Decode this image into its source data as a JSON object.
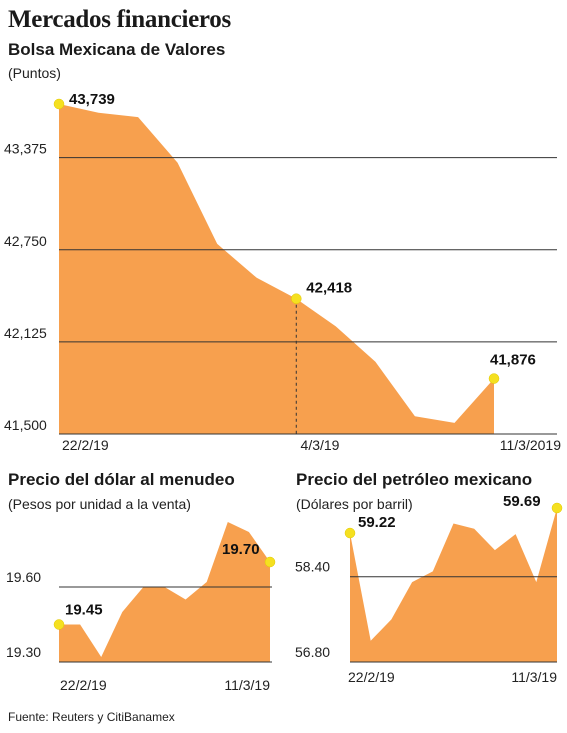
{
  "header": {
    "title": "Mercados financieros"
  },
  "footer": {
    "source": "Fuente: Reuters y CitiBanamex"
  },
  "colors": {
    "fill": "#F7A04E",
    "marker": "#F5E020",
    "grid": "#333333"
  },
  "chart_data": [
    {
      "id": "bmv",
      "type": "area",
      "title": "Bolsa Mexicana de Valores",
      "unit": "(Puntos)",
      "xticks": [
        "22/2/19",
        "4/3/19",
        "11/3/2019"
      ],
      "y": [
        43739,
        43680,
        43650,
        43340,
        42790,
        42560,
        42418,
        42230,
        41990,
        41620,
        41575,
        41876
      ],
      "ylim": [
        41500,
        43739
      ],
      "yticks": [
        41500,
        42125,
        42750,
        43375
      ],
      "ytick_labels": [
        "41,500",
        "42,125",
        "42,750",
        "43,375"
      ],
      "labels": [
        {
          "index": 0,
          "text": "43,739"
        },
        {
          "index": 6,
          "text": "42,418"
        },
        {
          "index": 11,
          "text": "41,876"
        }
      ],
      "dashed_index": 6
    },
    {
      "id": "dolar",
      "type": "area",
      "title": "Precio del dólar al menudeo",
      "unit": "(Pesos por unidad a la venta)",
      "xticks": [
        "22/2/19",
        "11/3/19"
      ],
      "y": [
        19.45,
        19.45,
        19.32,
        19.5,
        19.6,
        19.6,
        19.55,
        19.62,
        19.86,
        19.82,
        19.7
      ],
      "ylim": [
        19.3,
        19.9
      ],
      "yticks": [
        19.3,
        19.6
      ],
      "ytick_labels": [
        "19.30",
        "19.60"
      ],
      "labels": [
        {
          "index": 0,
          "text": "19.45"
        },
        {
          "index": 10,
          "text": "19.70"
        }
      ]
    },
    {
      "id": "petroleo",
      "type": "area",
      "title": "Precio del petróleo mexicano",
      "unit": "(Dólares por barril)",
      "xticks": [
        "22/2/19",
        "11/3/19"
      ],
      "y": [
        59.22,
        57.2,
        57.6,
        58.3,
        58.5,
        59.4,
        59.3,
        58.9,
        59.2,
        58.3,
        59.69
      ],
      "ylim": [
        56.8,
        59.69
      ],
      "yticks": [
        56.8,
        58.4
      ],
      "ytick_labels": [
        "56.80",
        "58.40"
      ],
      "labels": [
        {
          "index": 0,
          "text": "59.22"
        },
        {
          "index": 10,
          "text": "59.69"
        }
      ]
    }
  ]
}
